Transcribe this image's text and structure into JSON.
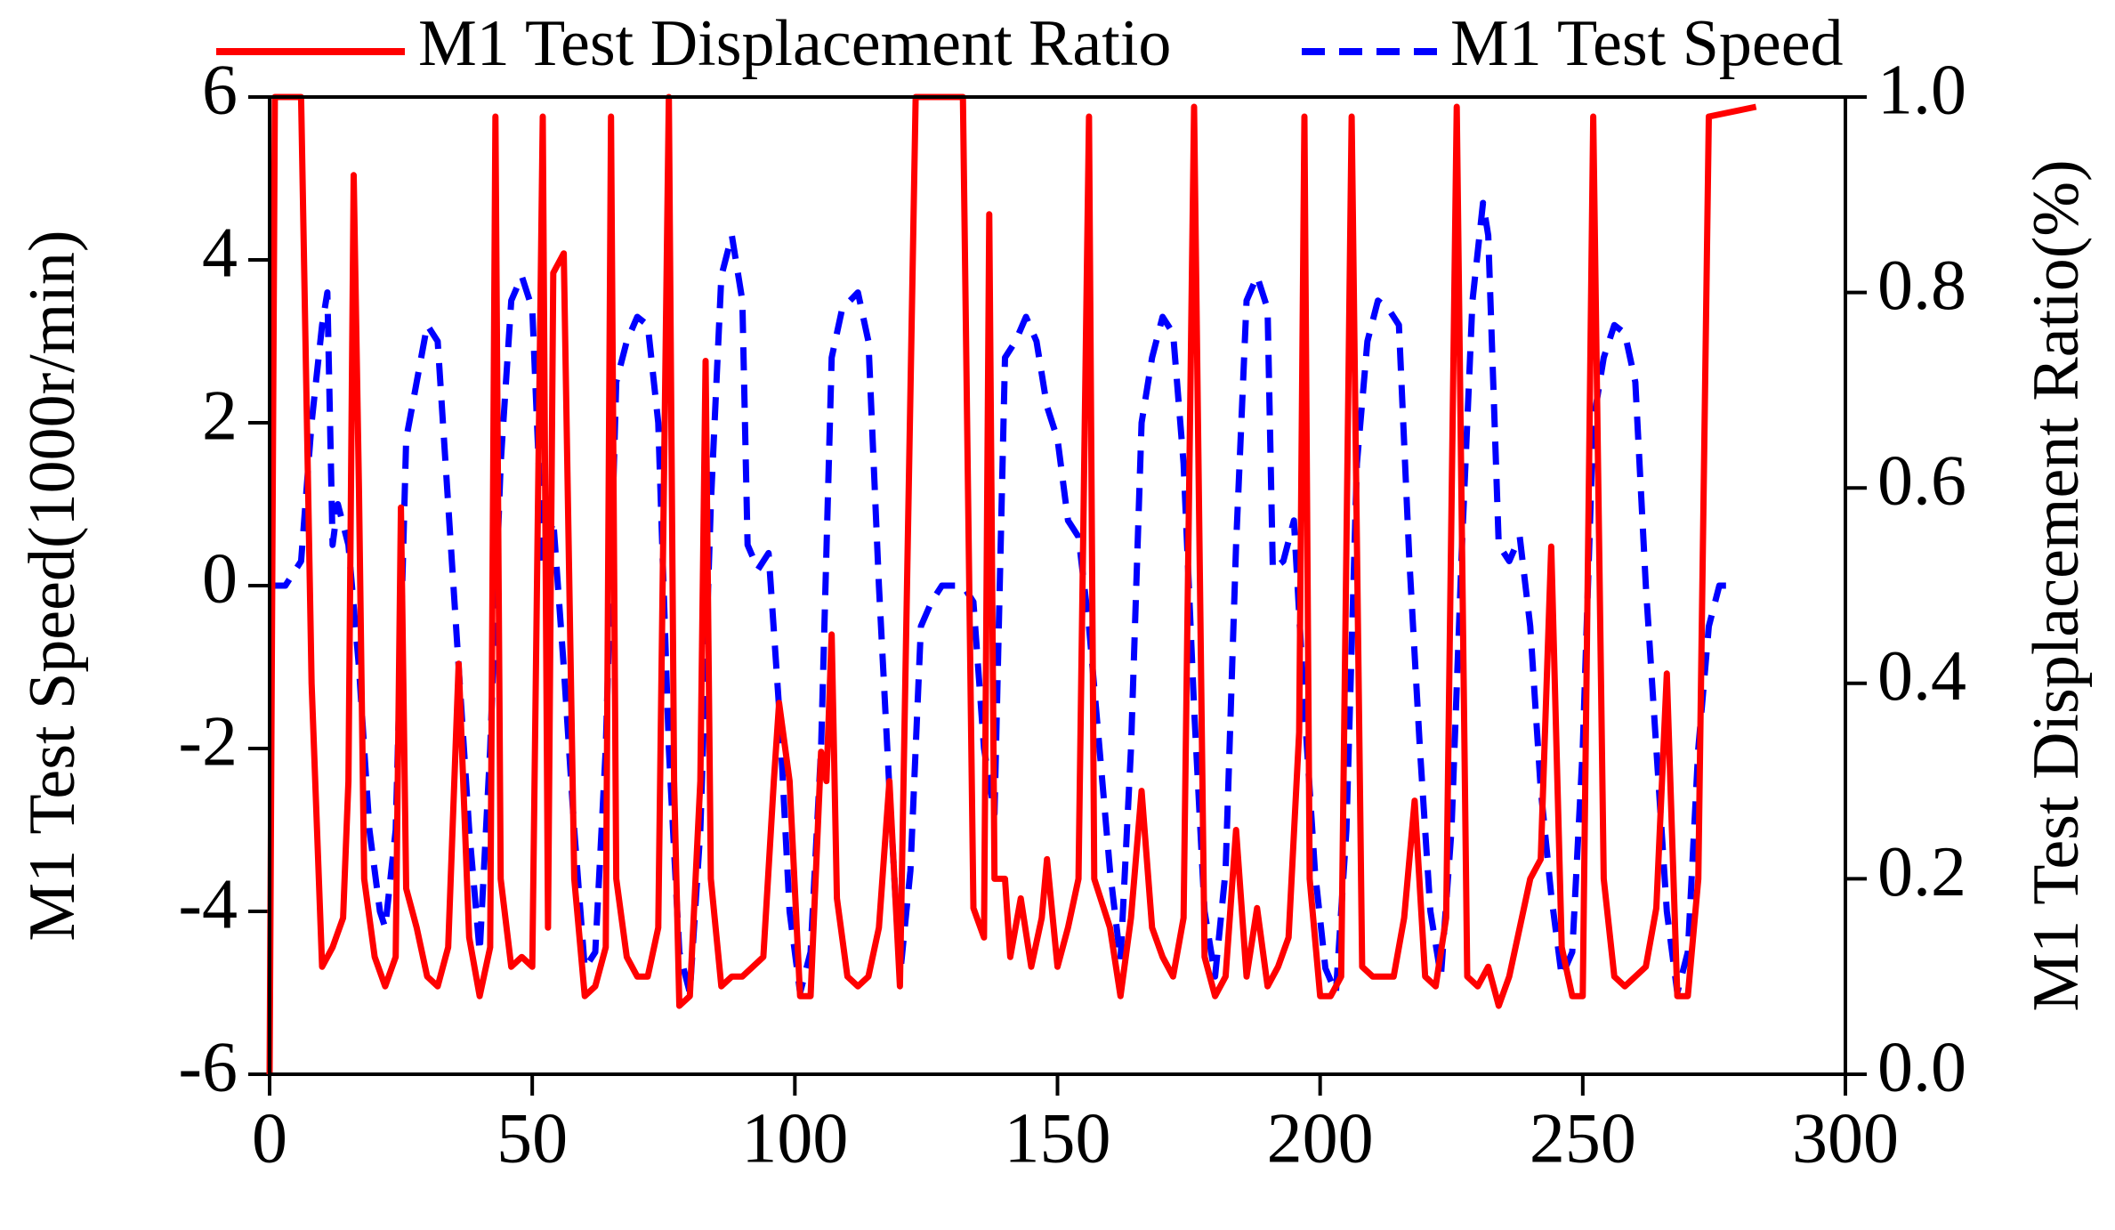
{
  "chart_data": {
    "type": "line",
    "x_axis_ticks_note": null,
    "y_label": "M1 Test Speed(1000r/min)",
    "y2_label": "M1 Test Displacement Ratio(%)",
    "xlim": [
      0,
      300
    ],
    "xticks": [
      0,
      50,
      100,
      150,
      200,
      250,
      300
    ],
    "ylim": [
      -6,
      6
    ],
    "yticks": [
      -6,
      -4,
      -2,
      0,
      2,
      4,
      6
    ],
    "y2lim": [
      0,
      1
    ],
    "y2ticks": [
      {
        "value": 0,
        "label": "0.0"
      },
      0.2,
      0.4,
      0.6,
      0.8,
      {
        "value": 1,
        "label": "1.0"
      }
    ],
    "legend": "top",
    "series": [
      {
        "name": "M1 Test Displacement Ratio",
        "color": "#ff0000",
        "style": "solid",
        "axis": "y2",
        "x": [
          0,
          1,
          6,
          8,
          10,
          12,
          14,
          15,
          16,
          17,
          18,
          20,
          22,
          24,
          25,
          26,
          28,
          30,
          32,
          34,
          36,
          38,
          40,
          42,
          43,
          44,
          46,
          48,
          50,
          52,
          53,
          54,
          56,
          58,
          60,
          62,
          64,
          65,
          66,
          68,
          70,
          72,
          74,
          76,
          77,
          78,
          80,
          82,
          83,
          84,
          86,
          88,
          90,
          92,
          94,
          96,
          97,
          99,
          101,
          103,
          105,
          106,
          107,
          108,
          110,
          112,
          114,
          116,
          118,
          120,
          123,
          132,
          134,
          136,
          137,
          138,
          140,
          141,
          143,
          145,
          147,
          148,
          150,
          152,
          154,
          156,
          157,
          160,
          162,
          164,
          166,
          168,
          170,
          172,
          174,
          176,
          178,
          180,
          182,
          184,
          186,
          188,
          190,
          192,
          194,
          196,
          197,
          198,
          200,
          202,
          204,
          206,
          208,
          210,
          212,
          214,
          216,
          218,
          220,
          222,
          224,
          226,
          228,
          230,
          232,
          234,
          236,
          238,
          240,
          242,
          244,
          246,
          248,
          250,
          252,
          254,
          256,
          258,
          260,
          262,
          264,
          266,
          268,
          270,
          272,
          274,
          283
        ],
        "values": [
          0,
          1,
          1,
          0.4,
          0.11,
          0.13,
          0.16,
          0.3,
          0.92,
          0.6,
          0.2,
          0.12,
          0.09,
          0.12,
          0.58,
          0.19,
          0.15,
          0.1,
          0.09,
          0.13,
          0.42,
          0.14,
          0.08,
          0.13,
          0.98,
          0.2,
          0.11,
          0.12,
          0.11,
          0.98,
          0.15,
          0.82,
          0.84,
          0.2,
          0.08,
          0.09,
          0.13,
          0.98,
          0.2,
          0.12,
          0.1,
          0.1,
          0.15,
          1,
          0.3,
          0.07,
          0.08,
          0.3,
          0.73,
          0.2,
          0.09,
          0.1,
          0.1,
          0.11,
          0.12,
          0.3,
          0.38,
          0.3,
          0.08,
          0.08,
          0.33,
          0.3,
          0.45,
          0.18,
          0.1,
          0.09,
          0.1,
          0.15,
          0.3,
          0.09,
          1,
          1,
          0.17,
          0.14,
          0.88,
          0.2,
          0.2,
          0.12,
          0.18,
          0.11,
          0.16,
          0.22,
          0.11,
          0.15,
          0.2,
          0.98,
          0.2,
          0.15,
          0.08,
          0.16,
          0.29,
          0.15,
          0.12,
          0.1,
          0.16,
          0.99,
          0.12,
          0.08,
          0.1,
          0.25,
          0.1,
          0.17,
          0.09,
          0.11,
          0.14,
          0.35,
          0.98,
          0.2,
          0.08,
          0.08,
          0.1,
          0.98,
          0.11,
          0.1,
          0.1,
          0.1,
          0.16,
          0.28,
          0.1,
          0.09,
          0.16,
          0.99,
          0.1,
          0.09,
          0.11,
          0.07,
          0.1,
          0.15,
          0.2,
          0.22,
          0.54,
          0.13,
          0.08,
          0.08,
          0.98,
          0.2,
          0.1,
          0.09,
          0.1,
          0.11,
          0.17,
          0.41,
          0.08,
          0.08,
          0.2,
          0.98,
          0.99
        ]
      },
      {
        "name": "M1 Test Speed",
        "color": "#0000ff",
        "style": "dashed",
        "axis": "y",
        "x": [
          0,
          3,
          6,
          8,
          10,
          11,
          12,
          13,
          15,
          17,
          19,
          21,
          22,
          24,
          26,
          28,
          30,
          32,
          34,
          36,
          38,
          40,
          42,
          44,
          46,
          48,
          50,
          52,
          54,
          56,
          58,
          60,
          62,
          64,
          66,
          68,
          70,
          72,
          74,
          76,
          78,
          80,
          82,
          84,
          86,
          88,
          90,
          91,
          93,
          95,
          97,
          99,
          101,
          103,
          105,
          107,
          109,
          112,
          114,
          116,
          118,
          120,
          122,
          124,
          126,
          128,
          132,
          134,
          136,
          138,
          140,
          142,
          144,
          146,
          148,
          150,
          152,
          154,
          156,
          158,
          160,
          162,
          164,
          166,
          168,
          170,
          172,
          174,
          176,
          178,
          180,
          182,
          184,
          186,
          188,
          190,
          191,
          193,
          195,
          197,
          199,
          201,
          203,
          205,
          207,
          209,
          211,
          213,
          215,
          217,
          219,
          221,
          223,
          225,
          227,
          229,
          231,
          232,
          234,
          236,
          238,
          240,
          242,
          244,
          246,
          248,
          250,
          252,
          254,
          256,
          258,
          260,
          262,
          264,
          266,
          268,
          270,
          272,
          274,
          276,
          279
        ],
        "values": [
          0,
          0,
          0.3,
          2,
          3.2,
          3.6,
          0.5,
          1,
          0.5,
          -1,
          -3,
          -4,
          -4.2,
          -3,
          1.8,
          2.5,
          3.2,
          3,
          1,
          -1,
          -3,
          -4.5,
          -2,
          1.5,
          3.5,
          3.8,
          3.4,
          0.3,
          0.8,
          -1,
          -3,
          -4.7,
          -4.5,
          -2,
          2.5,
          3,
          3.3,
          3.2,
          2,
          -2,
          -4.5,
          -5,
          -3,
          1,
          3.8,
          4.3,
          3.5,
          0.5,
          0.2,
          0.4,
          -1.5,
          -4,
          -5,
          -4.5,
          -2,
          2.8,
          3.4,
          3.6,
          3,
          0,
          -2.5,
          -4.8,
          -3.5,
          -0.5,
          -0.2,
          0,
          0,
          -0.2,
          -2,
          -2.8,
          2.8,
          3,
          3.3,
          3,
          2.2,
          1.8,
          0.8,
          0.6,
          -0.5,
          -2,
          -3.5,
          -4.6,
          -2,
          2,
          2.8,
          3.3,
          3.1,
          1.5,
          -1.5,
          -4,
          -4.8,
          -3.5,
          0.5,
          3.5,
          3.8,
          3.4,
          0.2,
          0.3,
          0.8,
          -1.5,
          -3.5,
          -4.7,
          -5,
          -3,
          1.5,
          3,
          3.5,
          3.4,
          3.2,
          0.3,
          -2,
          -4,
          -4.8,
          -3,
          0.5,
          3.5,
          4.7,
          4.3,
          0.5,
          0.3,
          0.6,
          -0.5,
          -2.5,
          -3.8,
          -4.8,
          -4.5,
          -2,
          2,
          2.8,
          3.2,
          3.1,
          2.5,
          0,
          -2,
          -4,
          -5,
          -4.5,
          -2,
          -0.5,
          0,
          0
        ]
      }
    ]
  }
}
